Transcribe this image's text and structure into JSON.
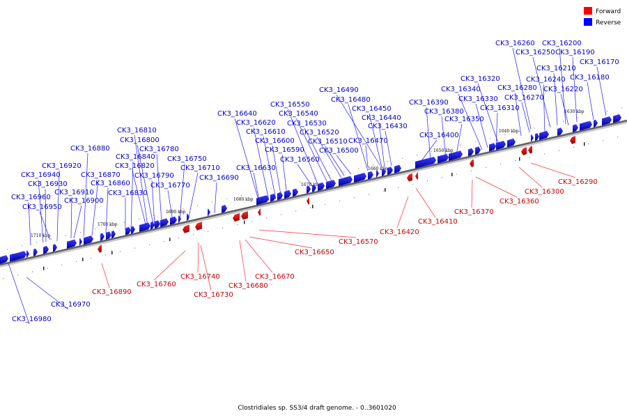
{
  "legend": [
    {
      "label": "Forward",
      "color": "#ff0000"
    },
    {
      "label": "Reverse",
      "color": "#0000ff"
    }
  ],
  "footer": "Clostridiales sp. SS3/4 draft genome. - 0..3601020",
  "ticks": [
    "1710 kbp",
    "1700 kbp",
    "1690 kbp",
    "1680 kbp",
    "1670 kbp",
    "1660 kbp",
    "1650 kbp",
    "1640 kbp",
    "1630 kbp"
  ],
  "reverse_genes": [
    "CK3_16260",
    "CK3_16200",
    "CK3_16250",
    "CK3_16190",
    "CK3_16170",
    "CK3_16210",
    "CK3_16180",
    "CK3_16320",
    "CK3_16240",
    "CK3_16340",
    "CK3_16280",
    "CK3_16220",
    "CK3_16330",
    "CK3_16270",
    "CK3_16490",
    "CK3_16390",
    "CK3_16310",
    "CK3_16550",
    "CK3_16480",
    "CK3_16380",
    "CK3_16540",
    "CK3_16450",
    "CK3_16350",
    "CK3_16640",
    "CK3_16440",
    "CK3_16620",
    "CK3_16530",
    "CK3_16430",
    "CK3_16610",
    "CK3_16520",
    "CK3_16400",
    "CK3_16810",
    "CK3_16600",
    "CK3_16510",
    "CK3_16470",
    "CK3_16800",
    "CK3_16590",
    "CK3_16500",
    "CK3_16880",
    "CK3_16780",
    "CK3_16560",
    "CK3_16840",
    "CK3_16750",
    "CK3_16920",
    "CK3_16820",
    "CK3_16630",
    "CK3_16710",
    "CK3_16870",
    "CK3_16790",
    "CK3_16940",
    "CK3_16860",
    "CK3_16690",
    "CK3_16770",
    "CK3_16930",
    "CK3_16910",
    "CK3_16830",
    "CK3_16960",
    "CK3_16900",
    "CK3_16950",
    "CK3_16970",
    "CK3_16980"
  ],
  "forward_genes": [
    "CK3_16290",
    "CK3_16300",
    "CK3_16360",
    "CK3_16370",
    "CK3_16410",
    "CK3_16420",
    "CK3_16570",
    "CK3_16650",
    "CK3_16670",
    "CK3_16680",
    "CK3_16730",
    "CK3_16740",
    "CK3_16760",
    "CK3_16890"
  ]
}
